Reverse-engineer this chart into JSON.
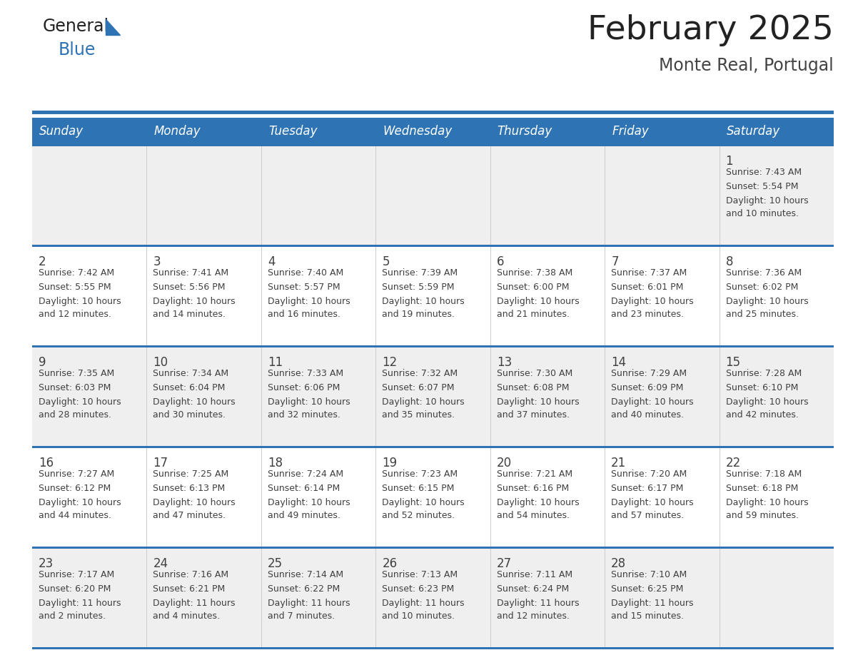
{
  "title": "February 2025",
  "subtitle": "Monte Real, Portugal",
  "days_of_week": [
    "Sunday",
    "Monday",
    "Tuesday",
    "Wednesday",
    "Thursday",
    "Friday",
    "Saturday"
  ],
  "header_bg": "#2E74B5",
  "header_text": "#FFFFFF",
  "cell_bg_odd": "#EFEFEF",
  "cell_bg_even": "#FFFFFF",
  "separator_color": "#2E74B5",
  "text_color": "#404040",
  "title_color": "#222222",
  "subtitle_color": "#444444",
  "logo_general_color": "#222222",
  "logo_blue_color": "#2E74B5",
  "logo_triangle_color": "#2E74B5",
  "calendar_data": [
    [
      null,
      null,
      null,
      null,
      null,
      null,
      {
        "day": 1,
        "sunrise": "7:43 AM",
        "sunset": "5:54 PM",
        "daylight": "10 hours and 10 minutes."
      }
    ],
    [
      {
        "day": 2,
        "sunrise": "7:42 AM",
        "sunset": "5:55 PM",
        "daylight": "10 hours and 12 minutes."
      },
      {
        "day": 3,
        "sunrise": "7:41 AM",
        "sunset": "5:56 PM",
        "daylight": "10 hours and 14 minutes."
      },
      {
        "day": 4,
        "sunrise": "7:40 AM",
        "sunset": "5:57 PM",
        "daylight": "10 hours and 16 minutes."
      },
      {
        "day": 5,
        "sunrise": "7:39 AM",
        "sunset": "5:59 PM",
        "daylight": "10 hours and 19 minutes."
      },
      {
        "day": 6,
        "sunrise": "7:38 AM",
        "sunset": "6:00 PM",
        "daylight": "10 hours and 21 minutes."
      },
      {
        "day": 7,
        "sunrise": "7:37 AM",
        "sunset": "6:01 PM",
        "daylight": "10 hours and 23 minutes."
      },
      {
        "day": 8,
        "sunrise": "7:36 AM",
        "sunset": "6:02 PM",
        "daylight": "10 hours and 25 minutes."
      }
    ],
    [
      {
        "day": 9,
        "sunrise": "7:35 AM",
        "sunset": "6:03 PM",
        "daylight": "10 hours and 28 minutes."
      },
      {
        "day": 10,
        "sunrise": "7:34 AM",
        "sunset": "6:04 PM",
        "daylight": "10 hours and 30 minutes."
      },
      {
        "day": 11,
        "sunrise": "7:33 AM",
        "sunset": "6:06 PM",
        "daylight": "10 hours and 32 minutes."
      },
      {
        "day": 12,
        "sunrise": "7:32 AM",
        "sunset": "6:07 PM",
        "daylight": "10 hours and 35 minutes."
      },
      {
        "day": 13,
        "sunrise": "7:30 AM",
        "sunset": "6:08 PM",
        "daylight": "10 hours and 37 minutes."
      },
      {
        "day": 14,
        "sunrise": "7:29 AM",
        "sunset": "6:09 PM",
        "daylight": "10 hours and 40 minutes."
      },
      {
        "day": 15,
        "sunrise": "7:28 AM",
        "sunset": "6:10 PM",
        "daylight": "10 hours and 42 minutes."
      }
    ],
    [
      {
        "day": 16,
        "sunrise": "7:27 AM",
        "sunset": "6:12 PM",
        "daylight": "10 hours and 44 minutes."
      },
      {
        "day": 17,
        "sunrise": "7:25 AM",
        "sunset": "6:13 PM",
        "daylight": "10 hours and 47 minutes."
      },
      {
        "day": 18,
        "sunrise": "7:24 AM",
        "sunset": "6:14 PM",
        "daylight": "10 hours and 49 minutes."
      },
      {
        "day": 19,
        "sunrise": "7:23 AM",
        "sunset": "6:15 PM",
        "daylight": "10 hours and 52 minutes."
      },
      {
        "day": 20,
        "sunrise": "7:21 AM",
        "sunset": "6:16 PM",
        "daylight": "10 hours and 54 minutes."
      },
      {
        "day": 21,
        "sunrise": "7:20 AM",
        "sunset": "6:17 PM",
        "daylight": "10 hours and 57 minutes."
      },
      {
        "day": 22,
        "sunrise": "7:18 AM",
        "sunset": "6:18 PM",
        "daylight": "10 hours and 59 minutes."
      }
    ],
    [
      {
        "day": 23,
        "sunrise": "7:17 AM",
        "sunset": "6:20 PM",
        "daylight": "11 hours and 2 minutes."
      },
      {
        "day": 24,
        "sunrise": "7:16 AM",
        "sunset": "6:21 PM",
        "daylight": "11 hours and 4 minutes."
      },
      {
        "day": 25,
        "sunrise": "7:14 AM",
        "sunset": "6:22 PM",
        "daylight": "11 hours and 7 minutes."
      },
      {
        "day": 26,
        "sunrise": "7:13 AM",
        "sunset": "6:23 PM",
        "daylight": "11 hours and 10 minutes."
      },
      {
        "day": 27,
        "sunrise": "7:11 AM",
        "sunset": "6:24 PM",
        "daylight": "11 hours and 12 minutes."
      },
      {
        "day": 28,
        "sunrise": "7:10 AM",
        "sunset": "6:25 PM",
        "daylight": "11 hours and 15 minutes."
      },
      null
    ]
  ]
}
